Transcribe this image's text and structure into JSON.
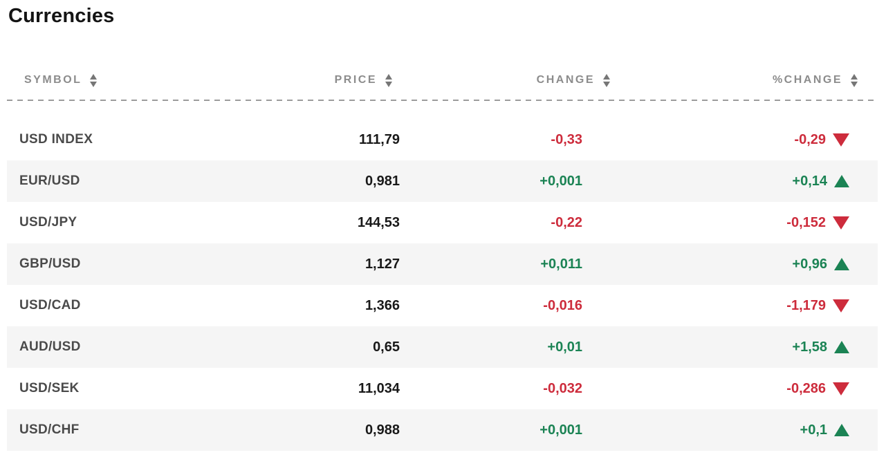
{
  "page": {
    "title": "Currencies"
  },
  "colors": {
    "positive": "#1b8354",
    "negative": "#cd2c3c",
    "header_text": "#8c8c8c",
    "stripe": "#f5f5f5"
  },
  "icons": {
    "sort": "sort-arrows-icon",
    "up": "triangle-up-icon",
    "down": "triangle-down-icon"
  },
  "table": {
    "columns": [
      {
        "key": "symbol",
        "label": "SYMBOL",
        "align": "left",
        "sortable": true
      },
      {
        "key": "price",
        "label": "PRICE",
        "align": "right",
        "sortable": true
      },
      {
        "key": "change",
        "label": "CHANGE",
        "align": "right",
        "sortable": true
      },
      {
        "key": "pct_change",
        "label": "%CHANGE",
        "align": "right",
        "sortable": true
      }
    ],
    "rows": [
      {
        "symbol": "USD INDEX",
        "price": "111,79",
        "change": "-0,33",
        "change_dir": "down",
        "pct_change": "-0,29",
        "pct_dir": "down"
      },
      {
        "symbol": "EUR/USD",
        "price": "0,981",
        "change": "+0,001",
        "change_dir": "up",
        "pct_change": "+0,14",
        "pct_dir": "up"
      },
      {
        "symbol": "USD/JPY",
        "price": "144,53",
        "change": "-0,22",
        "change_dir": "down",
        "pct_change": "-0,152",
        "pct_dir": "down"
      },
      {
        "symbol": "GBP/USD",
        "price": "1,127",
        "change": "+0,011",
        "change_dir": "up",
        "pct_change": "+0,96",
        "pct_dir": "up"
      },
      {
        "symbol": "USD/CAD",
        "price": "1,366",
        "change": "-0,016",
        "change_dir": "down",
        "pct_change": "-1,179",
        "pct_dir": "down"
      },
      {
        "symbol": "AUD/USD",
        "price": "0,65",
        "change": "+0,01",
        "change_dir": "up",
        "pct_change": "+1,58",
        "pct_dir": "up"
      },
      {
        "symbol": "USD/SEK",
        "price": "11,034",
        "change": "-0,032",
        "change_dir": "down",
        "pct_change": "-0,286",
        "pct_dir": "down"
      },
      {
        "symbol": "USD/CHF",
        "price": "0,988",
        "change": "+0,001",
        "change_dir": "up",
        "pct_change": "+0,1",
        "pct_dir": "up"
      }
    ]
  }
}
